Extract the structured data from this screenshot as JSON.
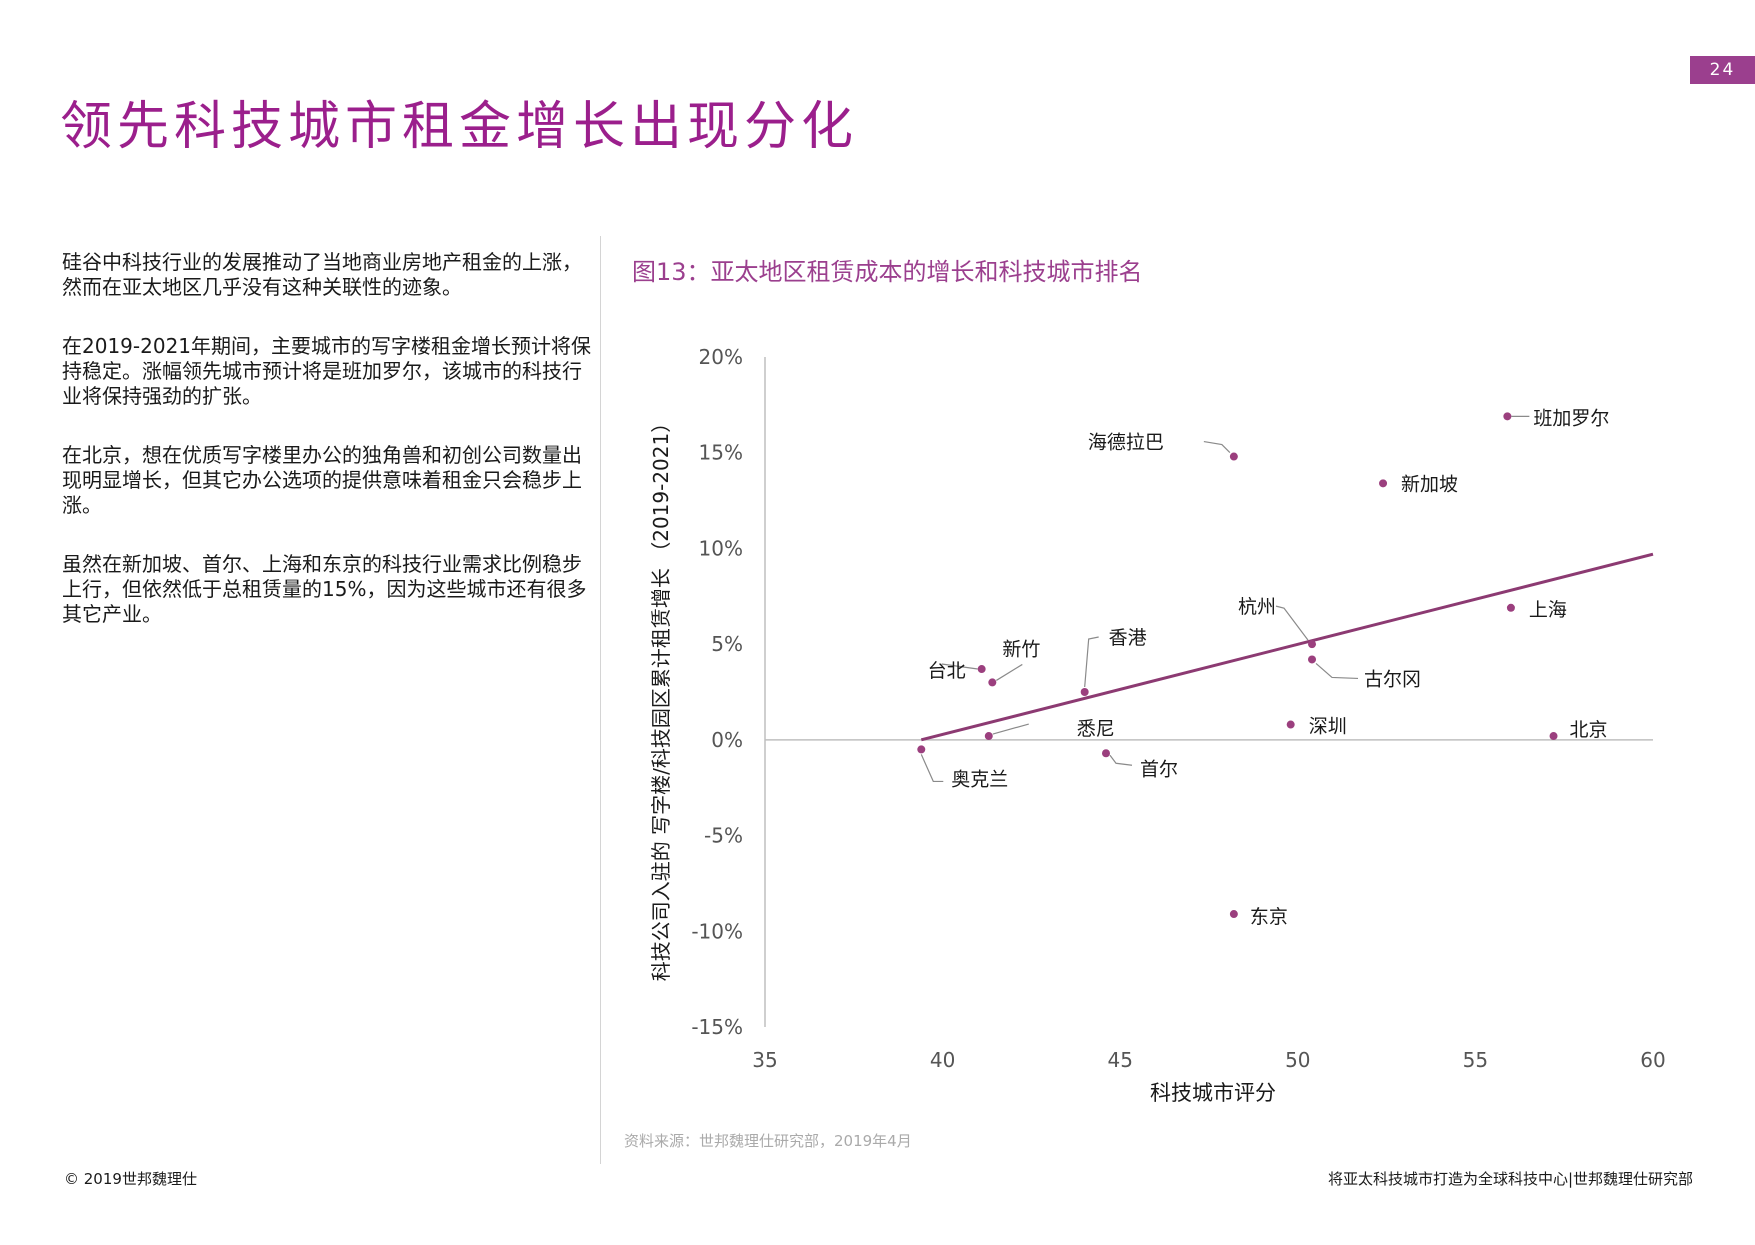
{
  "page_number": "24",
  "title": "领先科技城市租金增长出现分化",
  "paragraphs": [
    "硅谷中科技行业的发展推动了当地商业房地产租金的上涨，然而在亚太地区几乎没有这种关联性的迹象。",
    "在2019-2021年期间，主要城市的写字楼租金增长预计将保持稳定。涨幅领先城市预计将是班加罗尔，该城市的科技行业将保持强劲的扩张。",
    "在北京，想在优质写字楼里办公的独角兽和初创公司数量出现明显增长，但其它办公选项的提供意味着租金只会稳步上涨。",
    "虽然在新加坡、首尔、上海和东京的科技行业需求比例稳步上行，但依然低于总租赁量的15%，因为这些城市还有很多其它产业。"
  ],
  "figure_title": "图13：亚太地区租赁成本的增长和科技城市排名",
  "source": "资料来源：世邦魏理仕研究部，2019年4月",
  "footer": {
    "left": "© 2019世邦魏理仕",
    "right": "将亚太科技城市打造为全球科技中心|世邦魏理仕研究部"
  },
  "colors": {
    "accent": "#9b3f8e",
    "title": "#9b1f8c",
    "point": "#9b3f7e",
    "trend": "#8c3a72",
    "axis": "#bfbfbf",
    "text": "#1a1a1a"
  },
  "chart_data": {
    "type": "scatter",
    "xlabel": "科技城市评分",
    "ylabel": "科技公司入驻的 写字楼/科技园区累计租赁增长 （2019-2021）",
    "xlim": [
      35,
      60
    ],
    "ylim": [
      -15,
      20
    ],
    "x_ticks": [
      "35",
      "40",
      "45",
      "50",
      "55",
      "60"
    ],
    "y_ticks": [
      "20%",
      "15%",
      "10%",
      "5%",
      "0%",
      "-5%",
      "-10%",
      "-15%"
    ],
    "points": [
      {
        "label": "班加罗尔",
        "x": 55.9,
        "y": 16.9
      },
      {
        "label": "海德拉巴",
        "x": 48.2,
        "y": 14.8
      },
      {
        "label": "新加坡",
        "x": 52.4,
        "y": 13.4
      },
      {
        "label": "上海",
        "x": 56.0,
        "y": 6.9
      },
      {
        "label": "杭州",
        "x": 50.4,
        "y": 5.0
      },
      {
        "label": "古尔冈",
        "x": 50.4,
        "y": 4.2
      },
      {
        "label": "香港",
        "x": 44.0,
        "y": 2.5
      },
      {
        "label": "新竹",
        "x": 41.4,
        "y": 3.0
      },
      {
        "label": "台北",
        "x": 41.1,
        "y": 3.7
      },
      {
        "label": "深圳",
        "x": 49.8,
        "y": 0.8
      },
      {
        "label": "北京",
        "x": 57.2,
        "y": 0.2
      },
      {
        "label": "悉尼",
        "x": 41.3,
        "y": 0.2
      },
      {
        "label": "奥克兰",
        "x": 39.4,
        "y": -0.5
      },
      {
        "label": "首尔",
        "x": 44.6,
        "y": -0.7
      },
      {
        "label": "东京",
        "x": 48.2,
        "y": -9.1
      }
    ],
    "trend_line": {
      "x": [
        39.4,
        60
      ],
      "y": [
        0.0,
        9.7
      ]
    },
    "grid": false
  }
}
